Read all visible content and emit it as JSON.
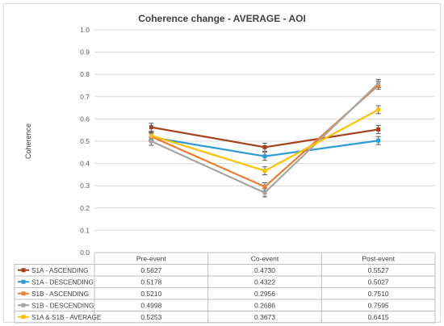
{
  "chart_data": {
    "type": "line",
    "title": "Coherence change - AVERAGE - AOI",
    "xlabel": "",
    "ylabel": "Coherence",
    "ylim": [
      0,
      1.0
    ],
    "ytick_labels": [
      "0.0",
      "0.1",
      "0.2",
      "0.3",
      "0.4",
      "0.5",
      "0.6",
      "0.7",
      "0.8",
      "0.9",
      "1.0"
    ],
    "yticks": [
      0,
      0.1,
      0.2,
      0.3,
      0.4,
      0.5,
      0.6,
      0.7,
      0.8,
      0.9,
      1.0
    ],
    "categories": [
      "Pre-event",
      "Co-event",
      "Post-event"
    ],
    "grid": "horizontal",
    "legend": "data-table",
    "series": [
      {
        "name": "S1A - ASCENDING",
        "color": "#a5401c",
        "values": [
          0.5627,
          0.473,
          0.5527
        ],
        "labels": [
          "0.5627",
          "0.4730",
          "0.5527"
        ]
      },
      {
        "name": "S1A - DESCENDING",
        "color": "#2e9bd6",
        "values": [
          0.5178,
          0.4322,
          0.5027
        ],
        "labels": [
          "0.5178",
          "0.4322",
          "0.5027"
        ]
      },
      {
        "name": "S1B - ASCENDING",
        "color": "#ed7d31",
        "values": [
          0.521,
          0.2956,
          0.751
        ],
        "labels": [
          "0.5210",
          "0.2956",
          "0.7510"
        ]
      },
      {
        "name": "S1B - DESCENDING",
        "color": "#a5a5a5",
        "values": [
          0.4998,
          0.2686,
          0.7595
        ],
        "labels": [
          "0.4998",
          "0.2686",
          "0.7595"
        ]
      },
      {
        "name": "S1A & S1B - AVERAGE",
        "color": "#ffc000",
        "values": [
          0.5253,
          0.3673,
          0.6415
        ],
        "labels": [
          "0.5253",
          "0.3673",
          "0.6415"
        ]
      }
    ]
  }
}
